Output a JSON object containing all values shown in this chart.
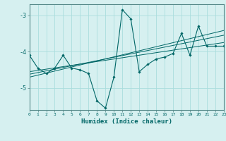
{
  "xlabel": "Humidex (Indice chaleur)",
  "bg_color": "#d6f0f0",
  "grid_color": "#aadddd",
  "line_color": "#006666",
  "spine_color": "#558888",
  "xlim": [
    0,
    23
  ],
  "ylim": [
    -5.6,
    -2.7
  ],
  "yticks": [
    -5,
    -4,
    -3
  ],
  "xticks": [
    0,
    1,
    2,
    3,
    4,
    5,
    6,
    7,
    8,
    9,
    10,
    11,
    12,
    13,
    14,
    15,
    16,
    17,
    18,
    19,
    20,
    21,
    22,
    23
  ],
  "main_x": [
    0,
    1,
    2,
    3,
    4,
    5,
    6,
    7,
    8,
    9,
    10,
    11,
    12,
    13,
    14,
    15,
    16,
    17,
    18,
    19,
    20,
    21,
    22,
    23
  ],
  "main_y": [
    -4.1,
    -4.45,
    -4.6,
    -4.45,
    -4.1,
    -4.45,
    -4.5,
    -4.6,
    -5.35,
    -5.55,
    -4.7,
    -2.85,
    -3.1,
    -4.55,
    -4.35,
    -4.2,
    -4.15,
    -4.05,
    -3.5,
    -4.1,
    -3.3,
    -3.85,
    -3.85,
    -3.85
  ],
  "trend1_x": [
    0,
    23
  ],
  "trend1_y": [
    -4.55,
    -3.75
  ],
  "trend2_x": [
    0,
    23
  ],
  "trend2_y": [
    -4.62,
    -3.55
  ],
  "trend3_x": [
    0,
    23
  ],
  "trend3_y": [
    -4.7,
    -3.42
  ]
}
